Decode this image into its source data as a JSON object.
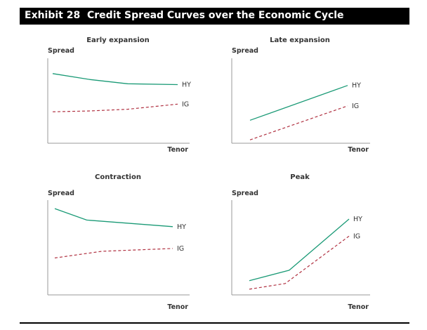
{
  "header": {
    "exhibit": "Exhibit 28",
    "title": "Credit Spread Curves over the Economic Cycle"
  },
  "colors": {
    "hy": "#1a9a76",
    "ig": "#b03040",
    "axis": "#999999"
  },
  "chart_data": [
    {
      "type": "line",
      "title": "Early expansion",
      "xlabel": "Tenor",
      "ylabel": "Spread",
      "ylim": [
        0,
        100
      ],
      "series": [
        {
          "name": "HY",
          "x": [
            0,
            0.3,
            0.6,
            1
          ],
          "values": [
            82,
            75,
            70,
            69
          ],
          "style": "solid"
        },
        {
          "name": "IG",
          "x": [
            0,
            0.3,
            0.6,
            1
          ],
          "values": [
            37,
            38,
            40,
            46
          ],
          "style": "dashed"
        }
      ]
    },
    {
      "type": "line",
      "title": "Late expansion",
      "xlabel": "Tenor",
      "ylabel": "Spread",
      "ylim": [
        0,
        100
      ],
      "series": [
        {
          "name": "HY",
          "x": [
            0,
            1
          ],
          "values": [
            27,
            68
          ],
          "style": "solid"
        },
        {
          "name": "IG",
          "x": [
            0,
            1
          ],
          "values": [
            4,
            44
          ],
          "style": "dashed"
        }
      ]
    },
    {
      "type": "line",
      "title": "Contraction",
      "xlabel": "Tenor",
      "ylabel": "Spread",
      "ylim": [
        0,
        100
      ],
      "series": [
        {
          "name": "HY",
          "x": [
            0,
            0.27,
            1
          ],
          "values": [
            91,
            79,
            72
          ],
          "style": "solid"
        },
        {
          "name": "IG",
          "x": [
            0,
            0.4,
            1
          ],
          "values": [
            39,
            46,
            49
          ],
          "style": "dashed"
        }
      ]
    },
    {
      "type": "line",
      "title": "Peak",
      "xlabel": "Tenor",
      "ylabel": "Spread",
      "ylim": [
        0,
        100
      ],
      "series": [
        {
          "name": "HY",
          "x": [
            0,
            0.4,
            1
          ],
          "values": [
            15,
            26,
            80
          ],
          "style": "solid"
        },
        {
          "name": "IG",
          "x": [
            0,
            0.36,
            1
          ],
          "values": [
            6,
            12,
            62
          ],
          "style": "dashed"
        }
      ]
    }
  ]
}
